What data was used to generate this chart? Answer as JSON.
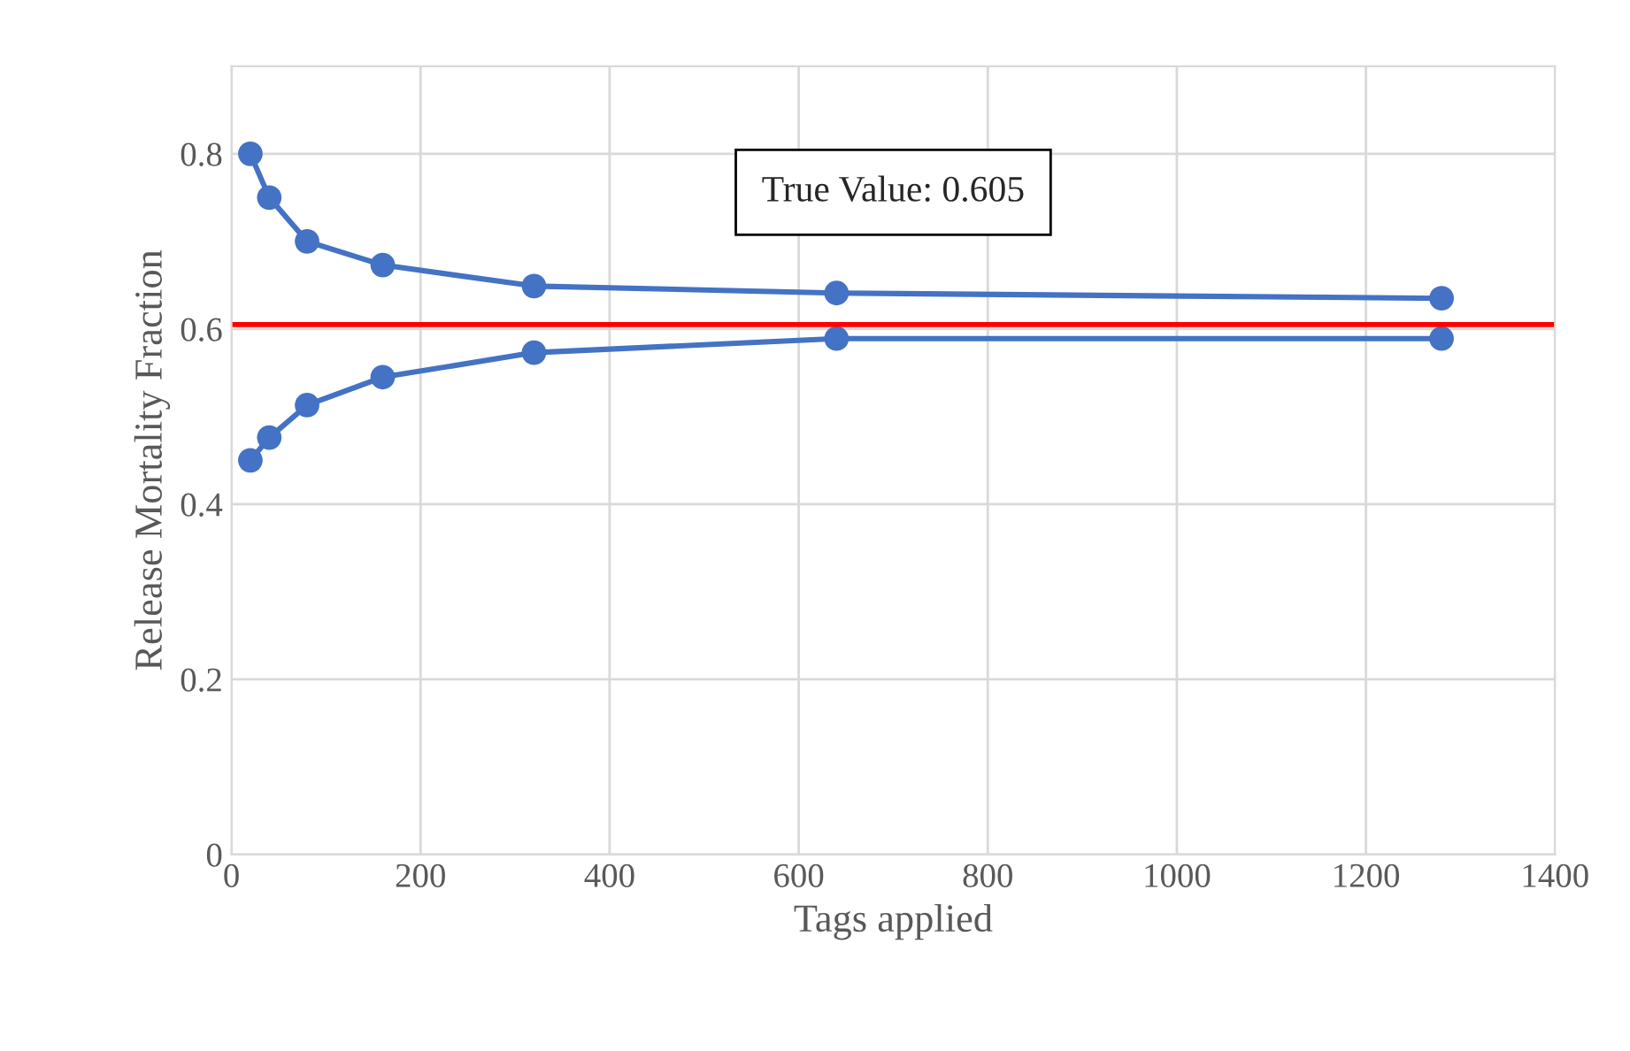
{
  "chart_data": {
    "type": "line",
    "xlabel": "Tags applied",
    "ylabel": "Release Mortality Fraction",
    "x": [
      20,
      40,
      80,
      160,
      320,
      640,
      1280
    ],
    "series": [
      {
        "color": "#4472c4",
        "values": [
          0.8,
          0.75,
          0.7,
          0.673,
          0.649,
          0.641,
          0.635
        ]
      },
      {
        "color": "#4472c4",
        "values": [
          0.45,
          0.476,
          0.513,
          0.545,
          0.573,
          0.589,
          0.589
        ]
      }
    ],
    "xlim": [
      0,
      1400
    ],
    "xticks": [
      0,
      200,
      400,
      600,
      800,
      1000,
      1200,
      1400
    ],
    "ylim": [
      0,
      0.9
    ],
    "yticks": [
      0,
      0.2,
      0.4,
      0.6,
      0.8
    ],
    "ref_lines": [
      {
        "axis": "y",
        "value": 0.605,
        "color": "#ff0000"
      }
    ],
    "annotations": [
      "True Value: 0.605"
    ],
    "grid": true,
    "marker": "circle",
    "line_style": "solid",
    "legend": false
  }
}
